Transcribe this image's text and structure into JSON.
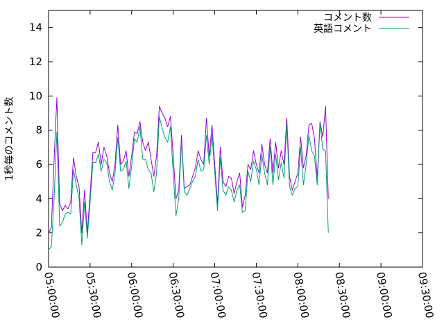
{
  "chart_data": {
    "type": "line",
    "title": "",
    "xlabel": "",
    "ylabel": "1秒毎のコメント数",
    "xlim": [
      "05:00:00",
      "09:30:00"
    ],
    "ylim": [
      0,
      15
    ],
    "x_ticks": [
      "05:00:00",
      "05:30:00",
      "06:00:00",
      "06:30:00",
      "07:00:00",
      "07:30:00",
      "08:00:00",
      "08:30:00",
      "09:00:00",
      "09:30:00"
    ],
    "y_ticks": [
      "0",
      "2",
      "4",
      "6",
      "8",
      "10",
      "12",
      "14"
    ],
    "grid": false,
    "legend_position": "top-right",
    "series": [
      {
        "name": "コメント数",
        "color": "#9400d3",
        "points": [
          [
            "05:00:00",
            2.0
          ],
          [
            "05:02:00",
            2.3
          ],
          [
            "05:04:00",
            6.3
          ],
          [
            "05:06:00",
            9.9
          ],
          [
            "05:08:00",
            3.7
          ],
          [
            "05:10:00",
            3.3
          ],
          [
            "05:12:00",
            3.6
          ],
          [
            "05:14:00",
            3.4
          ],
          [
            "05:16:00",
            3.8
          ],
          [
            "05:18:00",
            6.4
          ],
          [
            "05:20:00",
            5.3
          ],
          [
            "05:22:00",
            4.7
          ],
          [
            "05:24:00",
            2.0
          ],
          [
            "05:26:00",
            4.5
          ],
          [
            "05:28:00",
            2.0
          ],
          [
            "05:30:00",
            4.3
          ],
          [
            "05:32:00",
            6.7
          ],
          [
            "05:34:00",
            6.7
          ],
          [
            "05:36:00",
            7.3
          ],
          [
            "05:38:00",
            6.0
          ],
          [
            "05:40:00",
            7.0
          ],
          [
            "05:42:00",
            6.5
          ],
          [
            "05:44:00",
            5.5
          ],
          [
            "05:46:00",
            5.0
          ],
          [
            "05:48:00",
            6.0
          ],
          [
            "05:50:00",
            8.3
          ],
          [
            "05:52:00",
            6.0
          ],
          [
            "05:54:00",
            6.2
          ],
          [
            "05:56:00",
            6.8
          ],
          [
            "05:58:00",
            5.3
          ],
          [
            "06:00:00",
            6.5
          ],
          [
            "06:02:00",
            7.9
          ],
          [
            "06:04:00",
            7.8
          ],
          [
            "06:06:00",
            8.5
          ],
          [
            "06:08:00",
            7.3
          ],
          [
            "06:10:00",
            6.8
          ],
          [
            "06:12:00",
            7.3
          ],
          [
            "06:14:00",
            6.3
          ],
          [
            "06:16:00",
            5.3
          ],
          [
            "06:18:00",
            6.5
          ],
          [
            "06:20:00",
            9.4
          ],
          [
            "06:22:00",
            9.0
          ],
          [
            "06:24:00",
            8.7
          ],
          [
            "06:26:00",
            8.2
          ],
          [
            "06:28:00",
            8.8
          ],
          [
            "06:30:00",
            6.5
          ],
          [
            "06:32:00",
            4.0
          ],
          [
            "06:34:00",
            4.5
          ],
          [
            "06:36:00",
            7.7
          ],
          [
            "06:38:00",
            4.6
          ],
          [
            "06:40:00",
            4.7
          ],
          [
            "06:42:00",
            4.8
          ],
          [
            "06:44:00",
            5.3
          ],
          [
            "06:46:00",
            5.8
          ],
          [
            "06:48:00",
            6.8
          ],
          [
            "06:50:00",
            6.3
          ],
          [
            "06:52:00",
            6.0
          ],
          [
            "06:54:00",
            8.7
          ],
          [
            "06:56:00",
            6.5
          ],
          [
            "06:58:00",
            8.3
          ],
          [
            "07:00:00",
            6.0
          ],
          [
            "07:02:00",
            3.7
          ],
          [
            "07:04:00",
            7.0
          ],
          [
            "07:06:00",
            5.0
          ],
          [
            "07:08:00",
            4.7
          ],
          [
            "07:10:00",
            5.3
          ],
          [
            "07:12:00",
            5.2
          ],
          [
            "07:14:00",
            4.3
          ],
          [
            "07:16:00",
            5.0
          ],
          [
            "07:18:00",
            5.5
          ],
          [
            "07:20:00",
            3.5
          ],
          [
            "07:22:00",
            4.2
          ],
          [
            "07:24:00",
            6.0
          ],
          [
            "07:26:00",
            5.7
          ],
          [
            "07:28:00",
            6.8
          ],
          [
            "07:30:00",
            6.0
          ],
          [
            "07:32:00",
            5.5
          ],
          [
            "07:34:00",
            7.2
          ],
          [
            "07:36:00",
            6.0
          ],
          [
            "07:38:00",
            5.5
          ],
          [
            "07:40:00",
            7.5
          ],
          [
            "07:42:00",
            5.5
          ],
          [
            "07:44:00",
            7.3
          ],
          [
            "07:46:00",
            5.8
          ],
          [
            "07:48:00",
            6.8
          ],
          [
            "07:50:00",
            6.0
          ],
          [
            "07:52:00",
            8.7
          ],
          [
            "07:54:00",
            5.3
          ],
          [
            "07:56:00",
            4.5
          ],
          [
            "07:58:00",
            5.0
          ],
          [
            "08:00:00",
            5.5
          ],
          [
            "08:02:00",
            7.6
          ],
          [
            "08:04:00",
            5.8
          ],
          [
            "08:06:00",
            6.5
          ],
          [
            "08:08:00",
            8.3
          ],
          [
            "08:10:00",
            8.4
          ],
          [
            "08:12:00",
            7.5
          ],
          [
            "08:14:00",
            5.2
          ],
          [
            "08:16:00",
            8.5
          ],
          [
            "08:18:00",
            7.6
          ],
          [
            "08:20:00",
            9.4
          ],
          [
            "08:22:00",
            4.0
          ]
        ]
      },
      {
        "name": "英語コメント",
        "color": "#009e73",
        "points": [
          [
            "05:00:00",
            1.0
          ],
          [
            "05:02:00",
            1.2
          ],
          [
            "05:04:00",
            4.0
          ],
          [
            "05:06:00",
            7.9
          ],
          [
            "05:08:00",
            2.4
          ],
          [
            "05:10:00",
            2.6
          ],
          [
            "05:12:00",
            3.1
          ],
          [
            "05:14:00",
            3.2
          ],
          [
            "05:16:00",
            3.1
          ],
          [
            "05:18:00",
            5.7
          ],
          [
            "05:20:00",
            4.8
          ],
          [
            "05:22:00",
            4.0
          ],
          [
            "05:24:00",
            1.3
          ],
          [
            "05:26:00",
            3.8
          ],
          [
            "05:28:00",
            1.7
          ],
          [
            "05:30:00",
            3.8
          ],
          [
            "05:32:00",
            6.1
          ],
          [
            "05:34:00",
            6.1
          ],
          [
            "05:36:00",
            6.6
          ],
          [
            "05:38:00",
            5.6
          ],
          [
            "05:40:00",
            6.3
          ],
          [
            "05:42:00",
            6.1
          ],
          [
            "05:44:00",
            5.0
          ],
          [
            "05:46:00",
            4.5
          ],
          [
            "05:48:00",
            5.5
          ],
          [
            "05:50:00",
            7.6
          ],
          [
            "05:52:00",
            5.6
          ],
          [
            "05:54:00",
            5.7
          ],
          [
            "05:56:00",
            6.2
          ],
          [
            "05:58:00",
            4.6
          ],
          [
            "06:00:00",
            5.9
          ],
          [
            "06:02:00",
            7.5
          ],
          [
            "06:04:00",
            7.3
          ],
          [
            "06:06:00",
            8.2
          ],
          [
            "06:08:00",
            6.3
          ],
          [
            "06:10:00",
            6.3
          ],
          [
            "06:12:00",
            5.7
          ],
          [
            "06:14:00",
            5.5
          ],
          [
            "06:16:00",
            4.4
          ],
          [
            "06:18:00",
            5.5
          ],
          [
            "06:20:00",
            8.8
          ],
          [
            "06:22:00",
            8.1
          ],
          [
            "06:24:00",
            7.6
          ],
          [
            "06:26:00",
            7.3
          ],
          [
            "06:28:00",
            8.2
          ],
          [
            "06:30:00",
            5.5
          ],
          [
            "06:32:00",
            3.0
          ],
          [
            "06:34:00",
            4.0
          ],
          [
            "06:36:00",
            7.3
          ],
          [
            "06:38:00",
            4.4
          ],
          [
            "06:40:00",
            4.2
          ],
          [
            "06:42:00",
            4.6
          ],
          [
            "06:44:00",
            5.0
          ],
          [
            "06:46:00",
            5.3
          ],
          [
            "06:48:00",
            6.3
          ],
          [
            "06:50:00",
            5.6
          ],
          [
            "06:52:00",
            5.7
          ],
          [
            "06:54:00",
            7.7
          ],
          [
            "06:56:00",
            6.0
          ],
          [
            "06:58:00",
            7.7
          ],
          [
            "07:00:00",
            5.5
          ],
          [
            "07:02:00",
            3.3
          ],
          [
            "07:04:00",
            6.4
          ],
          [
            "07:06:00",
            4.5
          ],
          [
            "07:08:00",
            4.2
          ],
          [
            "07:10:00",
            4.7
          ],
          [
            "07:12:00",
            4.5
          ],
          [
            "07:14:00",
            3.8
          ],
          [
            "07:16:00",
            4.5
          ],
          [
            "07:18:00",
            4.8
          ],
          [
            "07:20:00",
            3.2
          ],
          [
            "07:22:00",
            3.3
          ],
          [
            "07:24:00",
            5.6
          ],
          [
            "07:26:00",
            5.0
          ],
          [
            "07:28:00",
            6.2
          ],
          [
            "07:30:00",
            5.7
          ],
          [
            "07:32:00",
            4.8
          ],
          [
            "07:34:00",
            6.6
          ],
          [
            "07:36:00",
            5.5
          ],
          [
            "07:38:00",
            4.8
          ],
          [
            "07:40:00",
            7.0
          ],
          [
            "07:42:00",
            4.8
          ],
          [
            "07:44:00",
            6.6
          ],
          [
            "07:46:00",
            5.1
          ],
          [
            "07:48:00",
            6.1
          ],
          [
            "07:50:00",
            5.2
          ],
          [
            "07:52:00",
            8.3
          ],
          [
            "07:54:00",
            4.7
          ],
          [
            "07:56:00",
            4.2
          ],
          [
            "07:58:00",
            4.6
          ],
          [
            "08:00:00",
            4.7
          ],
          [
            "08:02:00",
            7.0
          ],
          [
            "08:04:00",
            4.8
          ],
          [
            "08:06:00",
            6.0
          ],
          [
            "08:08:00",
            7.7
          ],
          [
            "08:10:00",
            6.8
          ],
          [
            "08:12:00",
            6.5
          ],
          [
            "08:14:00",
            4.8
          ],
          [
            "08:16:00",
            8.4
          ],
          [
            "08:18:00",
            6.9
          ],
          [
            "08:20:00",
            6.8
          ],
          [
            "08:22:00",
            2.0
          ]
        ]
      }
    ]
  }
}
